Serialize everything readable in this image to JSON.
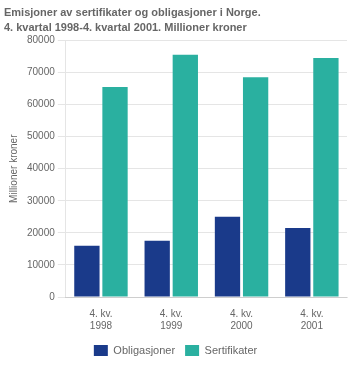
{
  "chart_data": {
    "type": "bar",
    "title": "Emisjoner av sertifikater og obligasjoner i Norge.",
    "subtitle": "4. kvartal 1998-4. kvartal 2001. Millioner kroner",
    "ylabel": "Millioner kroner",
    "categories": [
      "4. kv.\n1998",
      "4. kv.\n1999",
      "4. kv.\n2000",
      "4. kv.\n2001"
    ],
    "series": [
      {
        "name": "Obligasjoner",
        "color": "#1a3a8a",
        "values": [
          16000,
          17500,
          25000,
          21500
        ]
      },
      {
        "name": "Sertifikater",
        "color": "#2ab0a0",
        "values": [
          65500,
          75500,
          68500,
          74500
        ]
      }
    ],
    "ylim": [
      0,
      80000
    ],
    "yticks": [
      0,
      10000,
      20000,
      30000,
      40000,
      50000,
      60000,
      70000,
      80000
    ],
    "grid": true,
    "legend": "bottom"
  }
}
